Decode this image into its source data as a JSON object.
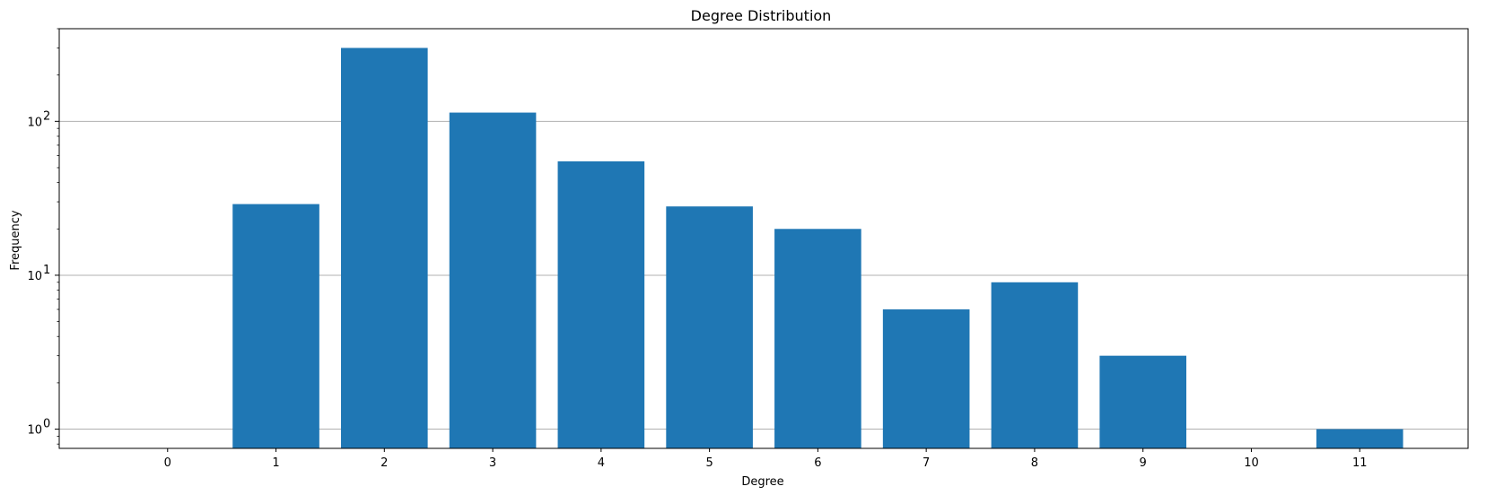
{
  "chart_data": {
    "type": "bar",
    "title": "Degree Distribution",
    "xlabel": "Degree",
    "ylabel": "Frequency",
    "yscale": "log",
    "ylim": [
      0.75,
      400
    ],
    "grid": "y-major",
    "categories": [
      "0",
      "1",
      "2",
      "3",
      "4",
      "5",
      "6",
      "7",
      "8",
      "9",
      "10",
      "11"
    ],
    "values": [
      0,
      29,
      300,
      114,
      55,
      28,
      20,
      6,
      9,
      3,
      0,
      1
    ],
    "y_ticks": [
      {
        "value": 1,
        "label": "10",
        "exp": "0"
      },
      {
        "value": 10,
        "label": "10",
        "exp": "1"
      },
      {
        "value": 100,
        "label": "10",
        "exp": "2"
      }
    ],
    "bar_color": "#1f77b4",
    "grid_color": "#b0b0b0"
  }
}
